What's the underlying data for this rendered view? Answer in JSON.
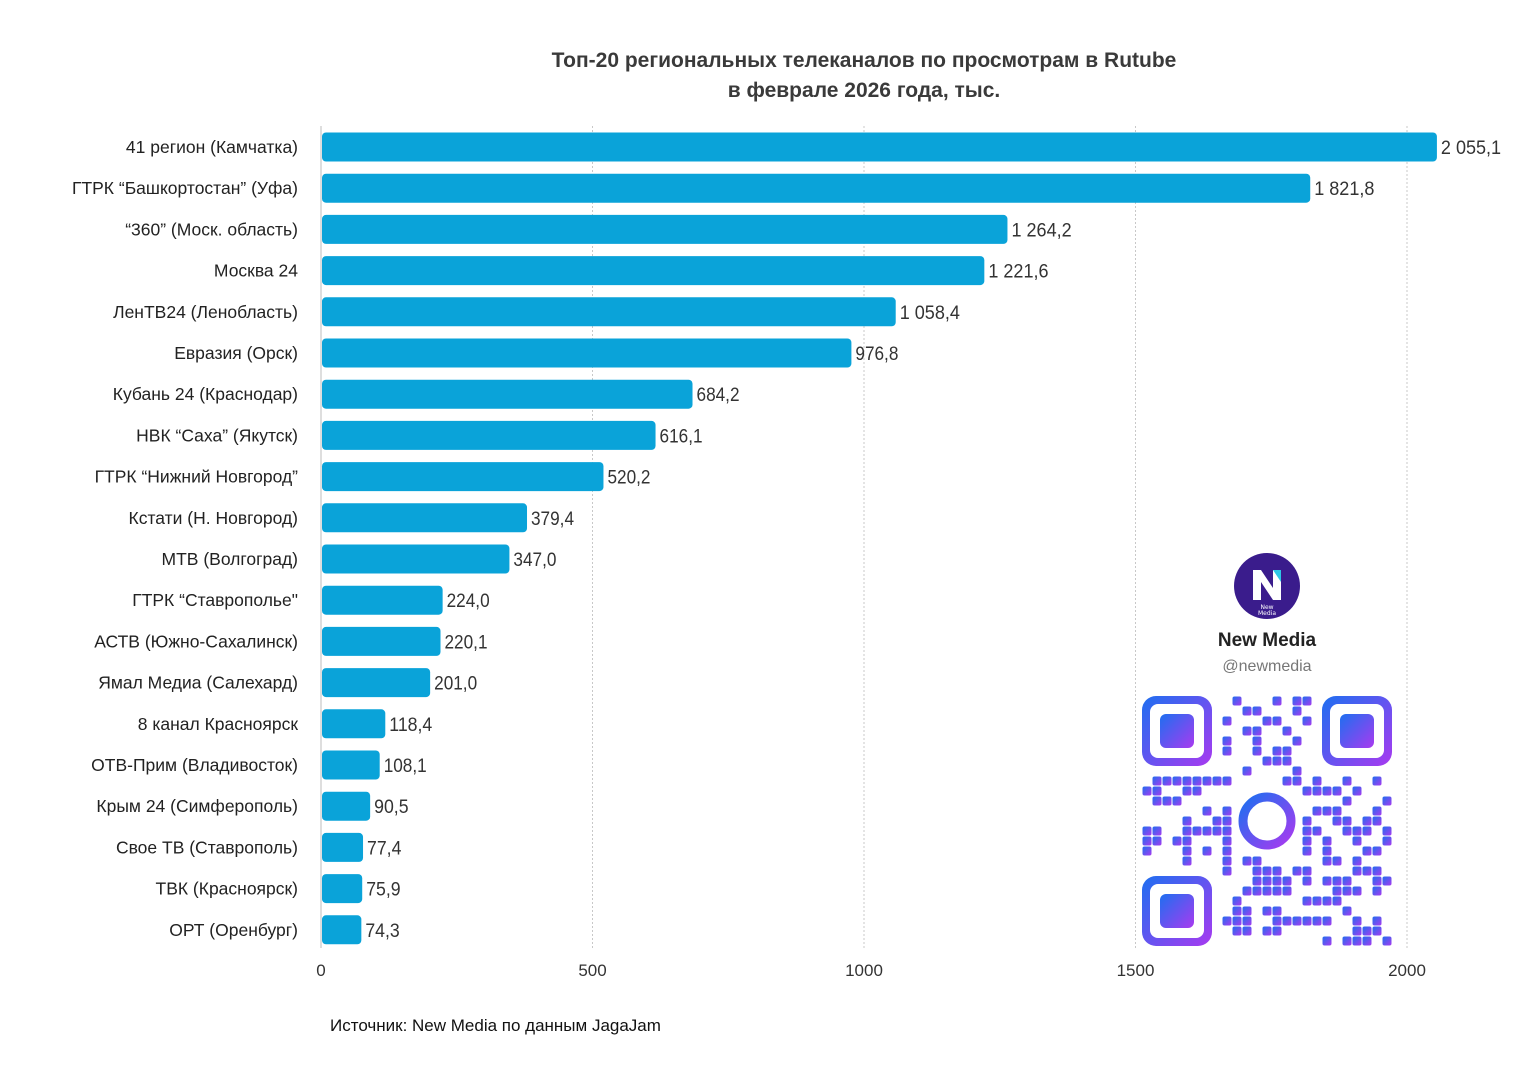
{
  "colors": {
    "bar": "#0aa3d9",
    "grid": "#c8c8c8",
    "qr_start": "#1e6ff0",
    "qr_end": "#a83af0",
    "logo_bg": "#3a1c8c"
  },
  "chart_data": {
    "type": "bar",
    "orientation": "horizontal",
    "title_line1": "Топ-20 региональных телеканалов по просмотрам в Rutube",
    "title_line2": "в феврале 2026 года, тыс.",
    "xlim": [
      0,
      2000
    ],
    "x_ticks": [
      "0",
      "500",
      "1000",
      "1500",
      "2000"
    ],
    "x_tick_values": [
      0,
      500,
      1000,
      1500,
      2000
    ],
    "grid": true,
    "categories": [
      "41 регион (Камчатка)",
      "ГТРК “Башкортостан” (Уфа)",
      "“360” (Моск. область)",
      "Москва 24",
      "ЛенТВ24 (Ленобласть)",
      "Евразия (Орск)",
      "Кубань 24 (Краснодар)",
      "НВК “Саха” (Якутск)",
      "ГТРК “Нижний Новгород”",
      "Кстати (Н. Новгород)",
      "МТВ (Волгоград)",
      "ГТРК “Ставрополье\"",
      "АСТВ (Южно-Сахалинск)",
      "Ямал Медиа (Салехард)",
      "8 канал Красноярск",
      "ОТВ-Прим (Владивосток)",
      "Крым 24 (Симферополь)",
      "Свое ТВ (Ставрополь)",
      "ТВК (Красноярск)",
      "ОРТ (Оренбург)"
    ],
    "values": [
      2055.1,
      1821.8,
      1264.2,
      1221.6,
      1058.4,
      976.8,
      684.2,
      616.1,
      520.2,
      379.4,
      347.0,
      224.0,
      220.1,
      201.0,
      118.4,
      108.1,
      90.5,
      77.4,
      75.9,
      74.3
    ],
    "value_labels": [
      "2 055,1",
      "1 821,8",
      "1 264,2",
      "1 221,6",
      "1 058,4",
      "976,8",
      "684,2",
      "616,1",
      "520,2",
      "379,4",
      "347,0",
      "224,0",
      "220,1",
      "201,0",
      "118,4",
      "108,1",
      "90,5",
      "77,4",
      "75,9",
      "74,3"
    ]
  },
  "source": "Источник: New Media по данным JagaJam",
  "brand": {
    "name": "New Media",
    "handle": "@newmedia",
    "logo_text": "New Media"
  }
}
